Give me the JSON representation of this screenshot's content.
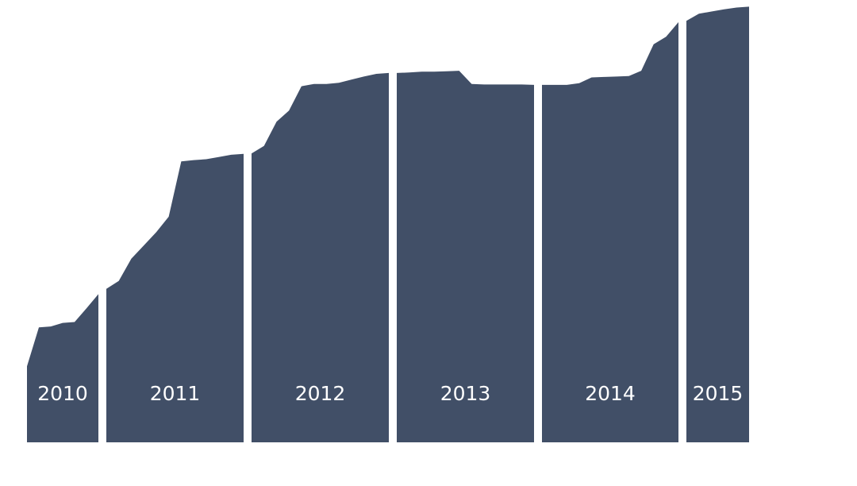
{
  "chart_data": {
    "type": "area",
    "title": "",
    "xlabel": "",
    "ylabel": "",
    "ylim": [
      0,
      100
    ],
    "fill_color": "#414f67",
    "background_color": "#ffffff",
    "segments": [
      {
        "label": "2010",
        "y": [
          17.2,
          26.0,
          26.2,
          27.0,
          27.2,
          30.3,
          33.5
        ]
      },
      {
        "label": "2011",
        "y": [
          34.7,
          36.5,
          41.5,
          44.5,
          47.5,
          51.0,
          63.5,
          63.8,
          64.0,
          64.5,
          65.0,
          65.2
        ]
      },
      {
        "label": "2012",
        "y": [
          65.3,
          67.0,
          72.5,
          75.0,
          80.5,
          81.0,
          81.0,
          81.3,
          82.0,
          82.7,
          83.3,
          83.5
        ]
      },
      {
        "label": "2013",
        "y": [
          83.5,
          83.6,
          83.8,
          83.8,
          83.9,
          84.0,
          81.0,
          80.9,
          80.9,
          80.9,
          80.9,
          80.8
        ]
      },
      {
        "label": "2014",
        "y": [
          80.8,
          80.8,
          80.8,
          81.2,
          82.5,
          82.6,
          82.7,
          82.8,
          84.0,
          90.0,
          91.7,
          95.0
        ]
      },
      {
        "label": "2015",
        "y": [
          95.3,
          96.9,
          97.4,
          97.9,
          98.3,
          98.5
        ]
      }
    ]
  }
}
